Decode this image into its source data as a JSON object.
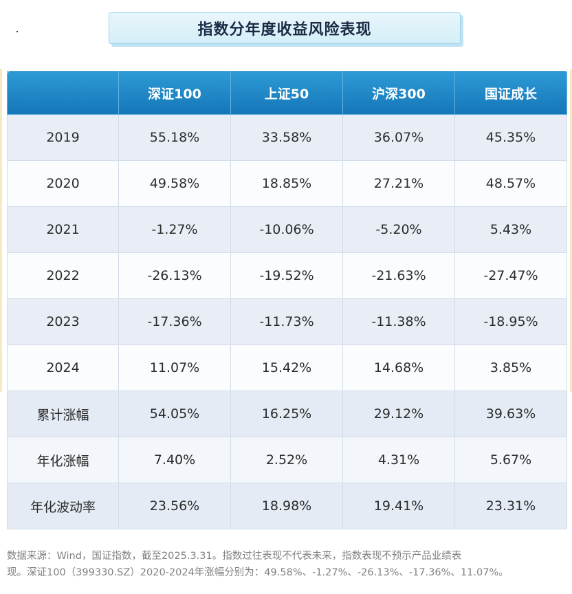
{
  "title": "指数分年度收益风险表现",
  "table": {
    "columns": [
      "",
      "深证100",
      "上证50",
      "沪深300",
      "国证成长"
    ],
    "rows": [
      {
        "label": "2019",
        "values": [
          "55.18%",
          "33.58%",
          "36.07%",
          "45.35%"
        ]
      },
      {
        "label": "2020",
        "values": [
          "49.58%",
          "18.85%",
          "27.21%",
          "48.57%"
        ]
      },
      {
        "label": "2021",
        "values": [
          "-1.27%",
          "-10.06%",
          "-5.20%",
          "5.43%"
        ]
      },
      {
        "label": "2022",
        "values": [
          "-26.13%",
          "-19.52%",
          "-21.63%",
          "-27.47%"
        ]
      },
      {
        "label": "2023",
        "values": [
          "-17.36%",
          "-11.73%",
          "-11.38%",
          "-18.95%"
        ]
      },
      {
        "label": "2024",
        "values": [
          "11.07%",
          "15.42%",
          "14.68%",
          "3.85%"
        ]
      },
      {
        "label": "累计涨幅",
        "values": [
          "54.05%",
          "16.25%",
          "29.12%",
          "39.63%"
        ]
      },
      {
        "label": "年化涨幅",
        "values": [
          "7.40%",
          "2.52%",
          "4.31%",
          "5.67%"
        ]
      },
      {
        "label": "年化波动率",
        "values": [
          "23.56%",
          "18.98%",
          "19.41%",
          "23.31%"
        ]
      }
    ]
  },
  "footnote": {
    "line1": "数据来源：Wind，国证指数，截至2025.3.31。指数过往表现不代表未来，指数表现不预示产品业绩表",
    "line2": "现。深证100（399330.SZ）2020-2024年涨幅分别为：49.58%、-1.27%、-26.13%、-17.36%、11.07%。"
  },
  "colors": {
    "header_bg": "#1b83c4",
    "row_odd": "#e9eef6",
    "row_even": "#fbfcfe",
    "title_banner": "#dff2fa"
  }
}
